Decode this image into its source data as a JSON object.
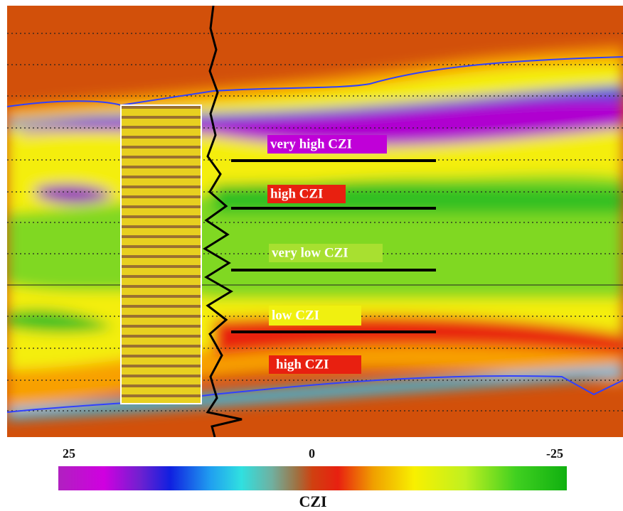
{
  "annotations": [
    "very high CZI",
    "high CZI",
    "very low CZI",
    "low CZI",
    "high CZI"
  ],
  "colorbar": {
    "title": "CZI",
    "range": [
      25,
      -25
    ],
    "ticks": [
      25,
      0,
      -25
    ]
  }
}
